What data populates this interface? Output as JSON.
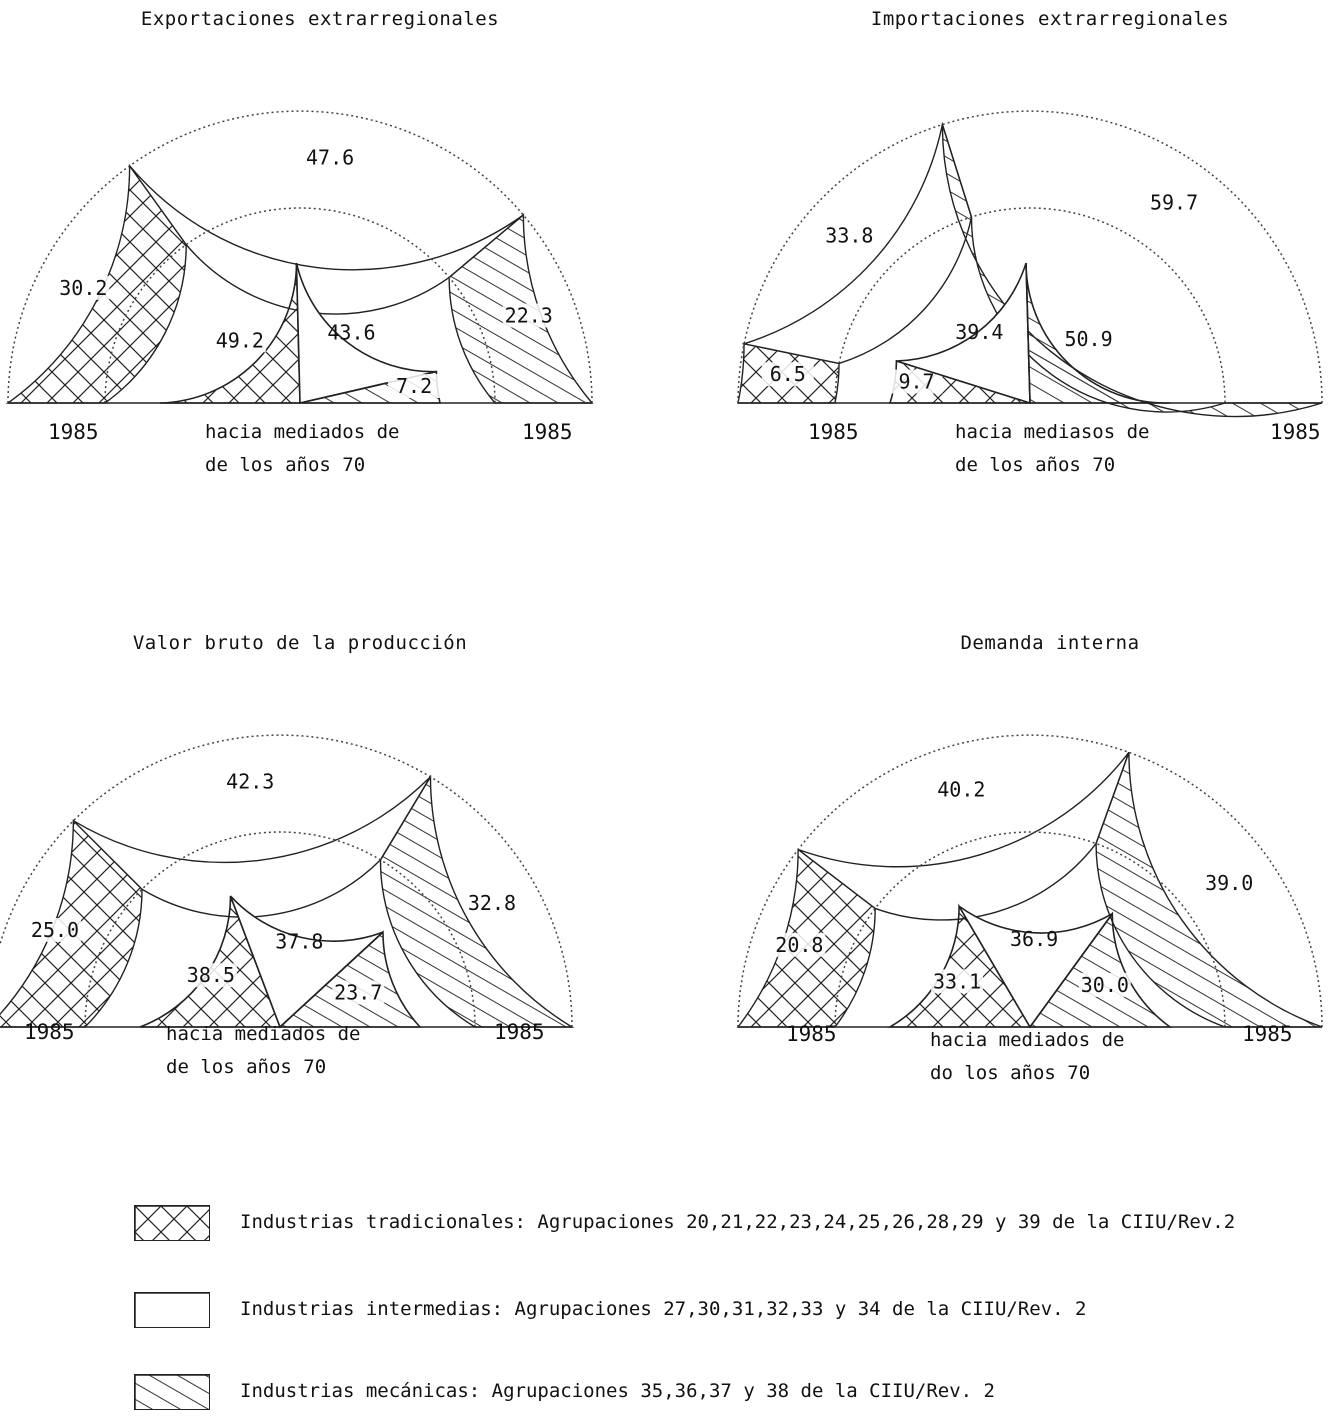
{
  "legend": [
    {
      "key": "trad",
      "pattern": "crosshatch",
      "text": "Industrias tradicionales: Agrupaciones 20,21,22,23,24,25,26,28,29 y 39 de la CIIU/Rev.2"
    },
    {
      "key": "inter",
      "pattern": "blank",
      "text": "Industrias intermedias: Agrupaciones 27,30,31,32,33 y 34 de la CIIU/Rev. 2"
    },
    {
      "key": "mec",
      "pattern": "diagonal",
      "text": "Industrias mecánicas: Agrupaciones 35,36,37 y 38 de la CIIU/Rev. 2"
    }
  ],
  "chart_data": [
    {
      "type": "pie",
      "title": "Exportaciones extrarregionales",
      "outer_label": "1985",
      "inner_label": "hacia mediados de de los años 70",
      "inner_label_lines": [
        "hacia mediados de",
        "de los años 70"
      ],
      "categories": [
        "Industrias tradicionales",
        "Industrias intermedias",
        "Industrias mecánicas"
      ],
      "series": [
        {
          "name": "1985",
          "values": [
            30.2,
            47.6,
            22.3
          ]
        },
        {
          "name": "hacia mediados de los años 70",
          "values": [
            49.2,
            43.6,
            7.2
          ]
        }
      ]
    },
    {
      "type": "pie",
      "title": "Importaciones extrarregionales",
      "outer_label": "1985",
      "inner_label": "hacia mediasos de de los años 70",
      "inner_label_lines": [
        "hacia mediasos de",
        "de los años 70"
      ],
      "categories": [
        "Industrias tradicionales",
        "Industrias intermedias",
        "Industrias mecánicas"
      ],
      "series": [
        {
          "name": "1985",
          "values": [
            6.5,
            33.8,
            59.7
          ]
        },
        {
          "name": "hacia mediados de los años 70",
          "values": [
            9.7,
            39.4,
            50.9
          ]
        }
      ]
    },
    {
      "type": "pie",
      "title": "Valor bruto de la producción",
      "outer_label": "1985",
      "inner_label": "hacia mediados de de los años 70",
      "inner_label_lines": [
        "hacia mediados de",
        "de los años 70"
      ],
      "categories": [
        "Industrias tradicionales",
        "Industrias intermedias",
        "Industrias mecánicas"
      ],
      "series": [
        {
          "name": "1985",
          "values": [
            25.0,
            42.3,
            32.8
          ]
        },
        {
          "name": "hacia mediados de los años 70",
          "values": [
            38.5,
            37.8,
            23.7
          ]
        }
      ]
    },
    {
      "type": "pie",
      "title": "Demanda interna",
      "outer_label": "1985",
      "inner_label": "hacia mediados de do los años 70",
      "inner_label_lines": [
        "hacia mediados de",
        "do los años 70"
      ],
      "categories": [
        "Industrias tradicionales",
        "Industrias intermedias",
        "Industrias mecánicas"
      ],
      "series": [
        {
          "name": "1985",
          "values": [
            20.8,
            40.2,
            39.0
          ]
        },
        {
          "name": "hacia mediados de los años 70",
          "values": [
            33.1,
            36.9,
            30.0
          ]
        }
      ]
    }
  ]
}
